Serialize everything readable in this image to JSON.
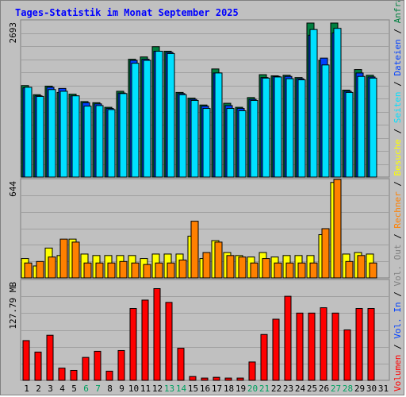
{
  "title": "Tages-Statistik im Monat September 2025",
  "colors": {
    "background": "#c0c0c0",
    "title": "#0000ff",
    "anfragen": "#008040",
    "dateien": "#0040ff",
    "seiten": "#00e0ff",
    "besuche": "#ffff00",
    "rechner": "#ff8000",
    "vol_out": "#808080",
    "vol_in": "#0040ff",
    "volumen": "#ff0000",
    "weekend_label": "#00a060",
    "weekday_label": "#000000"
  },
  "chart_data": {
    "type": "bar",
    "x": [
      "1",
      "2",
      "3",
      "4",
      "5",
      "6",
      "7",
      "8",
      "9",
      "10",
      "11",
      "12",
      "13",
      "14",
      "15",
      "16",
      "17",
      "18",
      "19",
      "20",
      "21",
      "22",
      "23",
      "24",
      "25",
      "26",
      "27",
      "28",
      "29",
      "30",
      "31"
    ],
    "weekend_days": [
      "6",
      "7",
      "13",
      "14",
      "20",
      "21",
      "27",
      "28"
    ],
    "panels": [
      {
        "ylabel": "2693",
        "ylim": [
          0,
          2693
        ],
        "series": [
          {
            "name": "Anfragen",
            "color": "#008040",
            "values": [
              1600,
              1440,
              1590,
              1480,
              1450,
              1320,
              1300,
              1220,
              1500,
              2060,
              2100,
              2280,
              2200,
              1480,
              1380,
              1260,
              1890,
              1290,
              1220,
              1390,
              1790,
              1770,
              1780,
              1740,
              2693,
              2040,
              2693,
              1520,
              1880,
              1780,
              0
            ]
          },
          {
            "name": "Dateien",
            "color": "#0040ff",
            "values": [
              1560,
              1420,
              1570,
              1550,
              1420,
              1300,
              1280,
              1200,
              1470,
              2040,
              2060,
              2200,
              2180,
              1460,
              1360,
              1240,
              1820,
              1250,
              1200,
              1360,
              1740,
              1760,
              1760,
              1720,
              2480,
              2080,
              2520,
              1500,
              1820,
              1750,
              0
            ]
          },
          {
            "name": "Seiten",
            "color": "#00e0ff",
            "values": [
              1570,
              1410,
              1530,
              1500,
              1420,
              1240,
              1250,
              1180,
              1460,
              1990,
              2040,
              2200,
              2160,
              1440,
              1340,
              1200,
              1820,
              1200,
              1160,
              1340,
              1730,
              1750,
              1720,
              1700,
              2580,
              1960,
              2600,
              1480,
              1760,
              1730,
              0
            ]
          }
        ]
      },
      {
        "ylabel": "644",
        "ylim": [
          0,
          644
        ],
        "series": [
          {
            "name": "Besuche",
            "color": "#ffff00",
            "values": [
              130,
              80,
              200,
              150,
              260,
              160,
              150,
              150,
              150,
              150,
              130,
              160,
              160,
              160,
              280,
              130,
              250,
              170,
              150,
              140,
              170,
              140,
              150,
              150,
              150,
              290,
              640,
              160,
              170,
              160,
              0
            ]
          },
          {
            "name": "Rechner",
            "color": "#ff8000",
            "values": [
              100,
              110,
              140,
              260,
              240,
              100,
              100,
              100,
              110,
              100,
              90,
              100,
              100,
              120,
              380,
              170,
              240,
              150,
              140,
              100,
              130,
              100,
              100,
              100,
              100,
              330,
              660,
              110,
              150,
              100,
              0
            ]
          }
        ]
      },
      {
        "ylabel": "127.79 MB",
        "ylim": [
          0,
          127.79
        ],
        "series": [
          {
            "name": "Volumen",
            "color": "#ff0000",
            "values": [
              52,
              37,
              59,
              16,
              13,
              30,
              38,
              12,
              39,
              94,
              105,
              120,
              102,
              42,
              5,
              3,
              4,
              3,
              3,
              24,
              60,
              80,
              110,
              88,
              88,
              95,
              88,
              66,
              94,
              94,
              0
            ]
          }
        ]
      }
    ],
    "legend": [
      {
        "label": "Volumen",
        "color": "#ff0000"
      },
      {
        "label": "Vol. In",
        "color": "#0040ff"
      },
      {
        "label": "Vol. Out",
        "color": "#808080"
      },
      {
        "label": "Rechner",
        "color": "#ff8000"
      },
      {
        "label": "Besuche",
        "color": "#ffff00"
      },
      {
        "label": "Seiten",
        "color": "#00e0ff"
      },
      {
        "label": "Dateien",
        "color": "#0040ff"
      },
      {
        "label": "Anfragen",
        "color": "#008040"
      }
    ],
    "legend_placement": "right, vertical"
  }
}
